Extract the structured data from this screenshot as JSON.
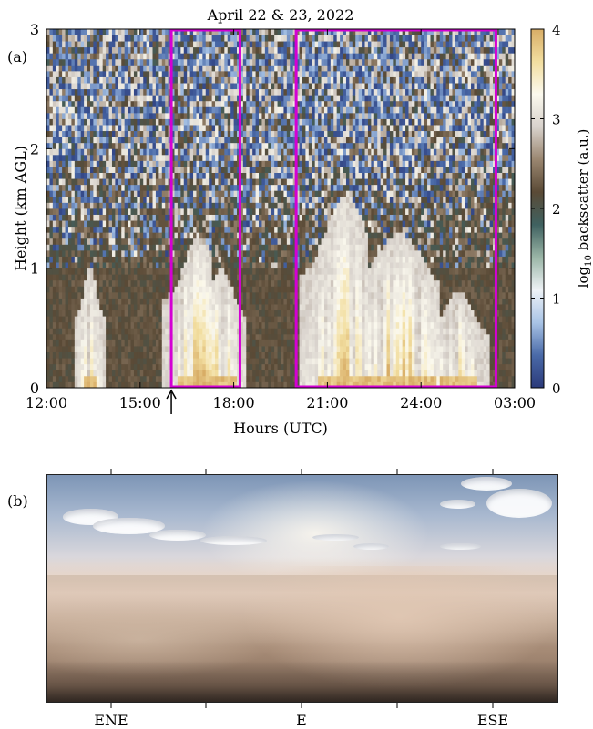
{
  "chart_data": [
    {
      "type": "heatmap",
      "panel_label": "(a)",
      "title": "April 22 & 23, 2022",
      "xlabel": "Hours (UTC)",
      "ylabel": "Height (km AGL)",
      "x_ticks": [
        "12:00",
        "15:00",
        "18:00",
        "21:00",
        "24:00",
        "03:00"
      ],
      "x_tick_hours": [
        12,
        15,
        18,
        21,
        24,
        27
      ],
      "xlim": [
        12,
        27
      ],
      "y_ticks": [
        "0",
        "1",
        "2",
        "3"
      ],
      "y_tick_values": [
        0,
        1,
        2,
        3
      ],
      "ylim": [
        0,
        3
      ],
      "colorbar": {
        "label": "log₁₀ backscatter (a.u.)",
        "ticks": [
          "0",
          "1",
          "2",
          "3",
          "4"
        ],
        "tick_values": [
          0,
          1,
          2,
          3,
          4
        ],
        "range": [
          0,
          4
        ],
        "colors": [
          "#2b3a7a",
          "#4a6aa8",
          "#a9c4e6",
          "#eef2f6",
          "#9ab5a6",
          "#3f6160",
          "#5a4a36",
          "#9a8670",
          "#d8d2cc",
          "#fbf9ee",
          "#f2dea0",
          "#d8ad66"
        ]
      },
      "highlight_boxes": [
        {
          "x_start": 16.0,
          "x_end": 18.2,
          "y_start": 0,
          "y_end": 3,
          "color": "#d400d4"
        },
        {
          "x_start": 20.0,
          "x_end": 26.4,
          "y_start": 0,
          "y_end": 3,
          "color": "#d400d4"
        }
      ],
      "arrow_marker_hour": 16.0,
      "dust_plumes": [
        {
          "center": 13.4,
          "width": 0.6,
          "height": 1.0,
          "intensity": 0.55
        },
        {
          "center": 16.9,
          "width": 1.4,
          "height": 1.25,
          "intensity": 0.9
        },
        {
          "center": 17.6,
          "width": 1.0,
          "height": 1.0,
          "intensity": 0.8
        },
        {
          "center": 21.6,
          "width": 1.8,
          "height": 1.6,
          "intensity": 0.85
        },
        {
          "center": 23.3,
          "width": 2.2,
          "height": 1.3,
          "intensity": 0.95
        },
        {
          "center": 25.2,
          "width": 1.2,
          "height": 0.8,
          "intensity": 0.7
        }
      ]
    },
    {
      "type": "photo",
      "panel_label": "(b)",
      "x_tick_labels": [
        "ENE",
        "E",
        "ESE"
      ]
    }
  ]
}
